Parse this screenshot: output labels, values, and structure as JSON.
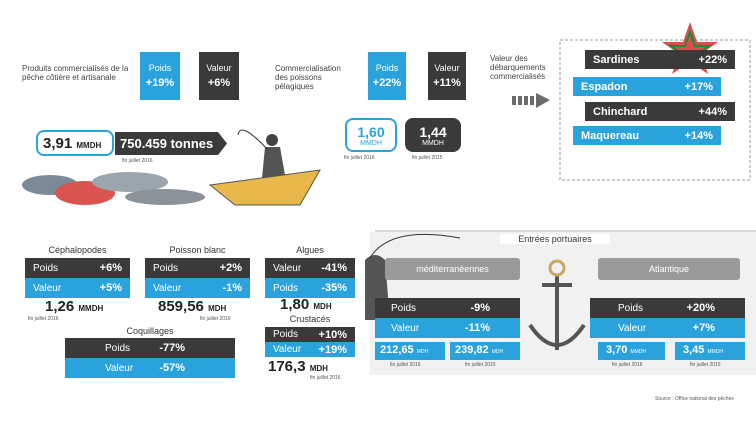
{
  "coastal": {
    "title": "Produits commercialisés de la pêche côtière et artisanale",
    "weight_label": "Poids",
    "weight": "+19%",
    "value_label": "Valeur",
    "value": "+6%",
    "amount": "3,91",
    "unit": "MMDH",
    "tonnage": "750.459 tonnes",
    "date": "fin juillet 2016"
  },
  "pelagic": {
    "title": "Commercialisation des poissons pélagiques",
    "weight_label": "Poids",
    "weight": "+22%",
    "value_label": "Valeur",
    "value": "+11%",
    "amount_2016": "1,60",
    "unit_2016": "MMDH",
    "date_2016": "fin juillet 2016",
    "amount_2015": "1,44",
    "unit_2015": "MMDH",
    "date_2015": "fin juillet 2015"
  },
  "landings": {
    "title": "Valeur des débarquements commercialisés",
    "species": [
      {
        "name": "Sardines",
        "change": "+22%"
      },
      {
        "name": "Espadon",
        "change": "+17%"
      },
      {
        "name": "Chinchard",
        "change": "+44%"
      },
      {
        "name": "Maquereau",
        "change": "+14%"
      }
    ]
  },
  "categories": [
    {
      "name": "Céphalopodes",
      "rows": [
        {
          "label": "Poids",
          "value": "+6%"
        },
        {
          "label": "Valeur",
          "value": "+5%"
        }
      ],
      "amount": "1,26",
      "unit": "MMDH",
      "date": "fin juillet 2016"
    },
    {
      "name": "Poisson blanc",
      "rows": [
        {
          "label": "Poids",
          "value": "+2%"
        },
        {
          "label": "Valeur",
          "value": "-1%"
        }
      ],
      "amount": "859,56",
      "unit": "MDH",
      "date": "fin juillet 2016"
    },
    {
      "name": "Algues",
      "rows": [
        {
          "label": "Valeur",
          "value": "-41%"
        },
        {
          "label": "Poids",
          "value": "-35%"
        }
      ],
      "amount": "1,80",
      "unit": "MDH"
    },
    {
      "name": "Coquillages",
      "rows": [
        {
          "label": "Poids",
          "value": "-77%"
        },
        {
          "label": "Valeur",
          "value": "-57%"
        }
      ]
    },
    {
      "name": "Crustacés",
      "rows": [
        {
          "label": "Poids",
          "value": "+10%"
        },
        {
          "label": "Valeur",
          "value": "+19%"
        }
      ],
      "amount": "176,3",
      "unit": "MDH",
      "date": "fin juillet 2016"
    }
  ],
  "ports": {
    "title": "Entrées portuaires",
    "regions": [
      {
        "name": "méditerranéennes",
        "rows": [
          {
            "label": "Poids",
            "value": "-9%"
          },
          {
            "label": "Valeur",
            "value": "-11%"
          }
        ],
        "amounts": [
          {
            "amount": "212,65",
            "unit": "MDH",
            "date": "fin juillet 2016"
          },
          {
            "amount": "239,82",
            "unit": "MDH",
            "date": "fin juillet 2015"
          }
        ]
      },
      {
        "name": "Atlantique",
        "rows": [
          {
            "label": "Poids",
            "value": "+20%"
          },
          {
            "label": "Valeur",
            "value": "+7%"
          }
        ],
        "amounts": [
          {
            "amount": "3,70",
            "unit": "MMDH",
            "date": "fin juillet 2016"
          },
          {
            "amount": "3,45",
            "unit": "MMDH",
            "date": "fin juillet 2015"
          }
        ]
      }
    ]
  },
  "source": "Source : Office national des pêches"
}
